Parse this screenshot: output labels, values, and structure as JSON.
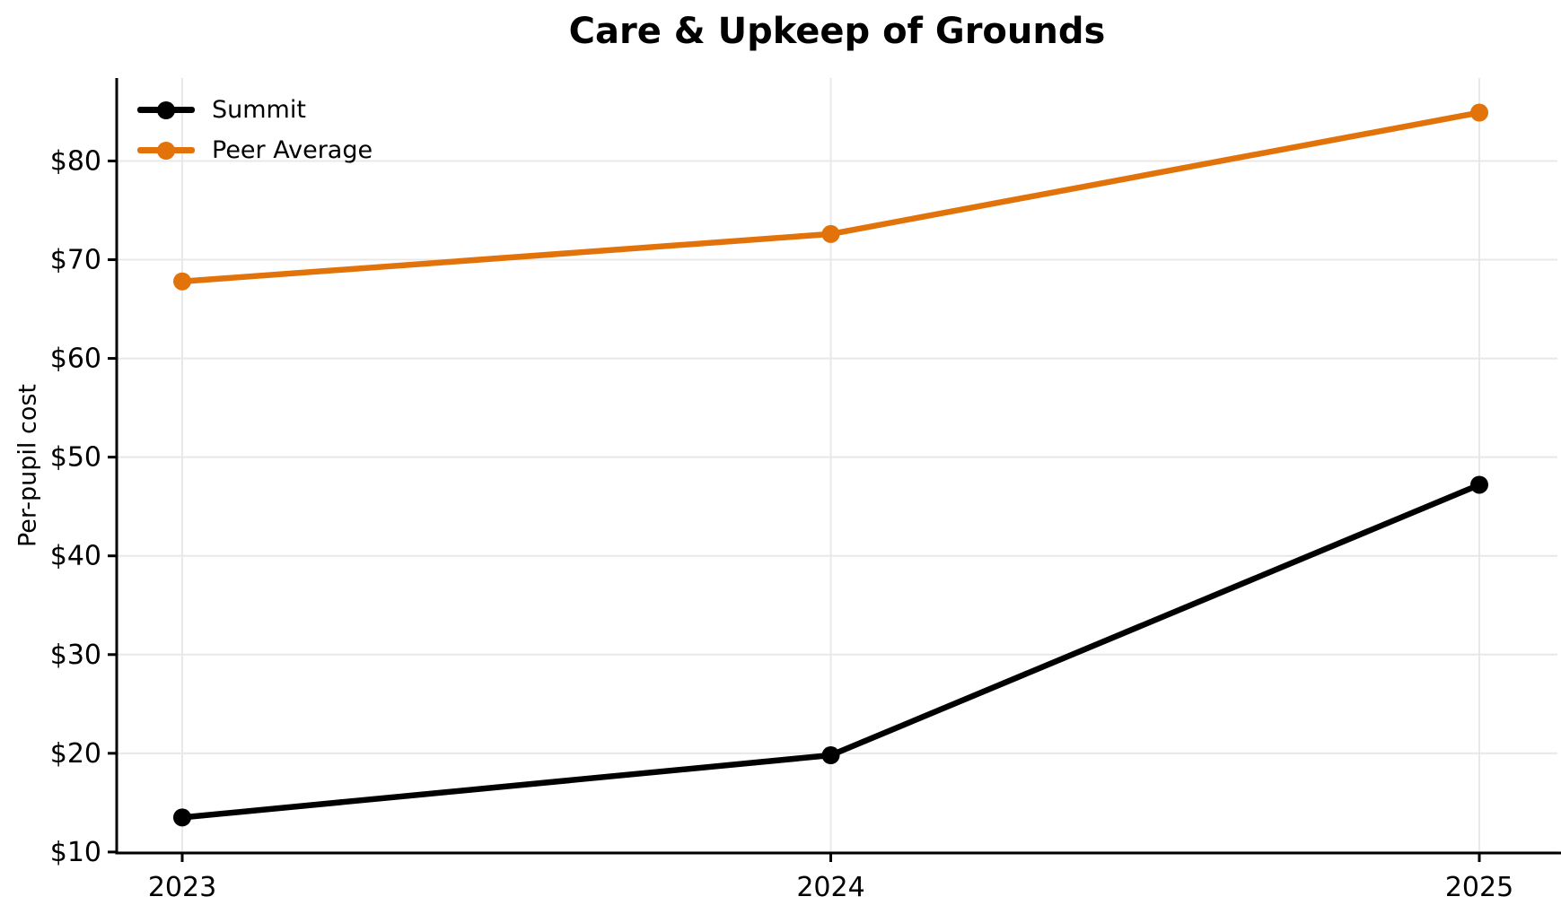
{
  "chart_data": {
    "type": "line",
    "title": "Care & Upkeep of Grounds",
    "ylabel": "Per-pupil cost",
    "xlabel": "",
    "categories": [
      "2023",
      "2024",
      "2025"
    ],
    "series": [
      {
        "name": "Summit",
        "color": "#000000",
        "values": [
          13.5,
          19.8,
          47.2
        ]
      },
      {
        "name": "Peer Average",
        "color": "#E1730A",
        "values": [
          67.8,
          72.6,
          84.9
        ]
      }
    ],
    "ylim": [
      9.9,
      88.4
    ],
    "yticks": [
      10,
      20,
      30,
      40,
      50,
      60,
      70,
      80
    ],
    "ytick_prefix": "$",
    "grid": true,
    "grid_color": "#e8e8e8",
    "axis_color": "#000000",
    "legend_position": "upper-left",
    "marker": "circle",
    "background": "#ffffff"
  }
}
